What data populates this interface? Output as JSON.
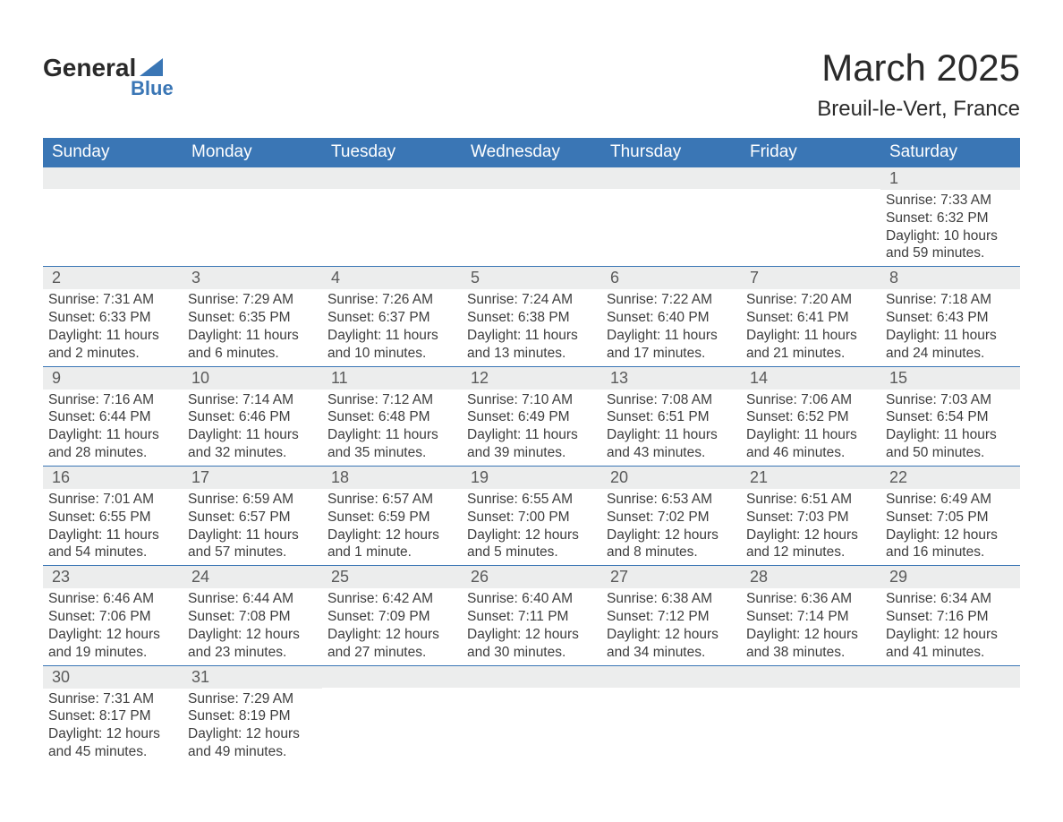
{
  "logo": {
    "word1": "General",
    "word2": "Blue"
  },
  "title": "March 2025",
  "location": "Breuil-le-Vert, France",
  "colors": {
    "header_bg": "#3a76b5",
    "header_text": "#ffffff",
    "daynum_bg": "#eceded",
    "body_text": "#3d3d3d",
    "page_bg": "#ffffff",
    "row_border": "#3a76b5"
  },
  "typography": {
    "title_fontsize": 42,
    "location_fontsize": 24,
    "header_fontsize": 19,
    "daynum_fontsize": 18,
    "cell_fontsize": 15.5
  },
  "weekdays": [
    "Sunday",
    "Monday",
    "Tuesday",
    "Wednesday",
    "Thursday",
    "Friday",
    "Saturday"
  ],
  "weeks": [
    [
      null,
      null,
      null,
      null,
      null,
      null,
      {
        "n": "1",
        "sunrise": "Sunrise: 7:33 AM",
        "sunset": "Sunset: 6:32 PM",
        "day1": "Daylight: 10 hours",
        "day2": "and 59 minutes."
      }
    ],
    [
      {
        "n": "2",
        "sunrise": "Sunrise: 7:31 AM",
        "sunset": "Sunset: 6:33 PM",
        "day1": "Daylight: 11 hours",
        "day2": "and 2 minutes."
      },
      {
        "n": "3",
        "sunrise": "Sunrise: 7:29 AM",
        "sunset": "Sunset: 6:35 PM",
        "day1": "Daylight: 11 hours",
        "day2": "and 6 minutes."
      },
      {
        "n": "4",
        "sunrise": "Sunrise: 7:26 AM",
        "sunset": "Sunset: 6:37 PM",
        "day1": "Daylight: 11 hours",
        "day2": "and 10 minutes."
      },
      {
        "n": "5",
        "sunrise": "Sunrise: 7:24 AM",
        "sunset": "Sunset: 6:38 PM",
        "day1": "Daylight: 11 hours",
        "day2": "and 13 minutes."
      },
      {
        "n": "6",
        "sunrise": "Sunrise: 7:22 AM",
        "sunset": "Sunset: 6:40 PM",
        "day1": "Daylight: 11 hours",
        "day2": "and 17 minutes."
      },
      {
        "n": "7",
        "sunrise": "Sunrise: 7:20 AM",
        "sunset": "Sunset: 6:41 PM",
        "day1": "Daylight: 11 hours",
        "day2": "and 21 minutes."
      },
      {
        "n": "8",
        "sunrise": "Sunrise: 7:18 AM",
        "sunset": "Sunset: 6:43 PM",
        "day1": "Daylight: 11 hours",
        "day2": "and 24 minutes."
      }
    ],
    [
      {
        "n": "9",
        "sunrise": "Sunrise: 7:16 AM",
        "sunset": "Sunset: 6:44 PM",
        "day1": "Daylight: 11 hours",
        "day2": "and 28 minutes."
      },
      {
        "n": "10",
        "sunrise": "Sunrise: 7:14 AM",
        "sunset": "Sunset: 6:46 PM",
        "day1": "Daylight: 11 hours",
        "day2": "and 32 minutes."
      },
      {
        "n": "11",
        "sunrise": "Sunrise: 7:12 AM",
        "sunset": "Sunset: 6:48 PM",
        "day1": "Daylight: 11 hours",
        "day2": "and 35 minutes."
      },
      {
        "n": "12",
        "sunrise": "Sunrise: 7:10 AM",
        "sunset": "Sunset: 6:49 PM",
        "day1": "Daylight: 11 hours",
        "day2": "and 39 minutes."
      },
      {
        "n": "13",
        "sunrise": "Sunrise: 7:08 AM",
        "sunset": "Sunset: 6:51 PM",
        "day1": "Daylight: 11 hours",
        "day2": "and 43 minutes."
      },
      {
        "n": "14",
        "sunrise": "Sunrise: 7:06 AM",
        "sunset": "Sunset: 6:52 PM",
        "day1": "Daylight: 11 hours",
        "day2": "and 46 minutes."
      },
      {
        "n": "15",
        "sunrise": "Sunrise: 7:03 AM",
        "sunset": "Sunset: 6:54 PM",
        "day1": "Daylight: 11 hours",
        "day2": "and 50 minutes."
      }
    ],
    [
      {
        "n": "16",
        "sunrise": "Sunrise: 7:01 AM",
        "sunset": "Sunset: 6:55 PM",
        "day1": "Daylight: 11 hours",
        "day2": "and 54 minutes."
      },
      {
        "n": "17",
        "sunrise": "Sunrise: 6:59 AM",
        "sunset": "Sunset: 6:57 PM",
        "day1": "Daylight: 11 hours",
        "day2": "and 57 minutes."
      },
      {
        "n": "18",
        "sunrise": "Sunrise: 6:57 AM",
        "sunset": "Sunset: 6:59 PM",
        "day1": "Daylight: 12 hours",
        "day2": "and 1 minute."
      },
      {
        "n": "19",
        "sunrise": "Sunrise: 6:55 AM",
        "sunset": "Sunset: 7:00 PM",
        "day1": "Daylight: 12 hours",
        "day2": "and 5 minutes."
      },
      {
        "n": "20",
        "sunrise": "Sunrise: 6:53 AM",
        "sunset": "Sunset: 7:02 PM",
        "day1": "Daylight: 12 hours",
        "day2": "and 8 minutes."
      },
      {
        "n": "21",
        "sunrise": "Sunrise: 6:51 AM",
        "sunset": "Sunset: 7:03 PM",
        "day1": "Daylight: 12 hours",
        "day2": "and 12 minutes."
      },
      {
        "n": "22",
        "sunrise": "Sunrise: 6:49 AM",
        "sunset": "Sunset: 7:05 PM",
        "day1": "Daylight: 12 hours",
        "day2": "and 16 minutes."
      }
    ],
    [
      {
        "n": "23",
        "sunrise": "Sunrise: 6:46 AM",
        "sunset": "Sunset: 7:06 PM",
        "day1": "Daylight: 12 hours",
        "day2": "and 19 minutes."
      },
      {
        "n": "24",
        "sunrise": "Sunrise: 6:44 AM",
        "sunset": "Sunset: 7:08 PM",
        "day1": "Daylight: 12 hours",
        "day2": "and 23 minutes."
      },
      {
        "n": "25",
        "sunrise": "Sunrise: 6:42 AM",
        "sunset": "Sunset: 7:09 PM",
        "day1": "Daylight: 12 hours",
        "day2": "and 27 minutes."
      },
      {
        "n": "26",
        "sunrise": "Sunrise: 6:40 AM",
        "sunset": "Sunset: 7:11 PM",
        "day1": "Daylight: 12 hours",
        "day2": "and 30 minutes."
      },
      {
        "n": "27",
        "sunrise": "Sunrise: 6:38 AM",
        "sunset": "Sunset: 7:12 PM",
        "day1": "Daylight: 12 hours",
        "day2": "and 34 minutes."
      },
      {
        "n": "28",
        "sunrise": "Sunrise: 6:36 AM",
        "sunset": "Sunset: 7:14 PM",
        "day1": "Daylight: 12 hours",
        "day2": "and 38 minutes."
      },
      {
        "n": "29",
        "sunrise": "Sunrise: 6:34 AM",
        "sunset": "Sunset: 7:16 PM",
        "day1": "Daylight: 12 hours",
        "day2": "and 41 minutes."
      }
    ],
    [
      {
        "n": "30",
        "sunrise": "Sunrise: 7:31 AM",
        "sunset": "Sunset: 8:17 PM",
        "day1": "Daylight: 12 hours",
        "day2": "and 45 minutes."
      },
      {
        "n": "31",
        "sunrise": "Sunrise: 7:29 AM",
        "sunset": "Sunset: 8:19 PM",
        "day1": "Daylight: 12 hours",
        "day2": "and 49 minutes."
      },
      null,
      null,
      null,
      null,
      null
    ]
  ]
}
